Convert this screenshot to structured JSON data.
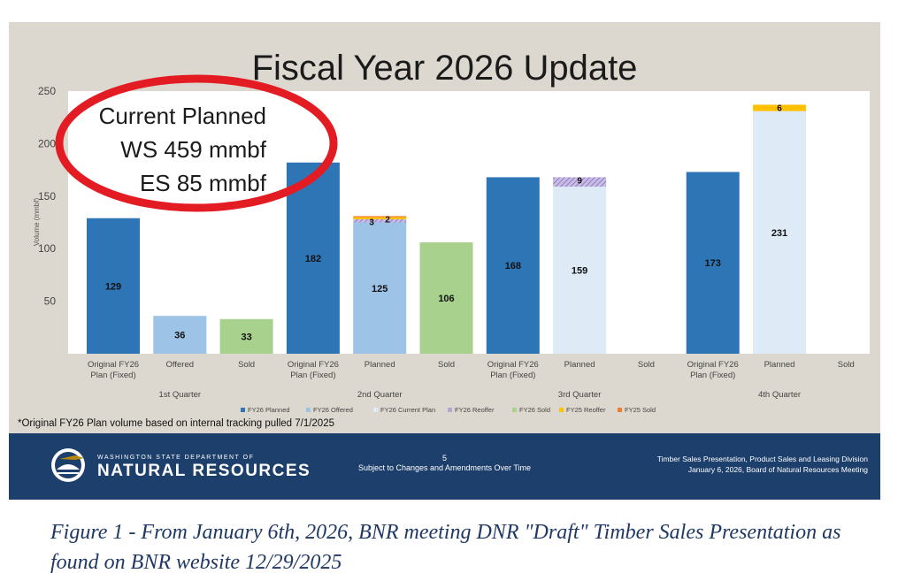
{
  "slide": {
    "title": "Fiscal Year 2026 Update",
    "footnote": "*Original FY26 Plan volume based on internal tracking pulled 7/1/2025"
  },
  "annotation": {
    "lines": [
      "Current Planned",
      "WS 459 mmbf",
      "ES 85 mmbf"
    ],
    "circle_color": "#e31b23"
  },
  "chart_data": {
    "type": "bar",
    "stacked": true,
    "ylabel": "Volume (mmbf)",
    "ylim": [
      0,
      250
    ],
    "yticks": [
      50,
      100,
      150,
      200,
      250
    ],
    "grid": false,
    "legend_position": "bottom",
    "groups": [
      {
        "label": "1st Quarter",
        "bars": [
          {
            "label": [
              "Original FY26",
              "Plan (Fixed)"
            ],
            "segments": [
              {
                "series": "FY26 Planned",
                "value": 129,
                "label": "129"
              }
            ]
          },
          {
            "label": [
              "Offered"
            ],
            "segments": [
              {
                "series": "FY26 Offered",
                "value": 36,
                "label": "36"
              }
            ]
          },
          {
            "label": [
              "Sold"
            ],
            "segments": [
              {
                "series": "FY26 Sold",
                "value": 33,
                "label": "33"
              }
            ]
          }
        ]
      },
      {
        "label": "2nd Quarter",
        "bars": [
          {
            "label": [
              "Original FY26",
              "Plan (Fixed)"
            ],
            "segments": [
              {
                "series": "FY26 Planned",
                "value": 182,
                "label": "182"
              }
            ]
          },
          {
            "label": [
              "Planned"
            ],
            "segments": [
              {
                "series": "FY26 Offered",
                "value": 125,
                "label": "125"
              },
              {
                "series": "FY26 Reoffer",
                "value": 3,
                "label": "3"
              },
              {
                "series": "FY25 Reoffer",
                "value": 2,
                "label": "2"
              },
              {
                "series": "FY25 Sold",
                "value": 1,
                "label": ""
              }
            ]
          },
          {
            "label": [
              "Sold"
            ],
            "segments": [
              {
                "series": "FY26 Sold",
                "value": 106,
                "label": "106"
              }
            ]
          }
        ]
      },
      {
        "label": "3rd Quarter",
        "bars": [
          {
            "label": [
              "Original FY26",
              "Plan (Fixed)"
            ],
            "segments": [
              {
                "series": "FY26 Planned",
                "value": 168,
                "label": "168"
              }
            ]
          },
          {
            "label": [
              "Planned"
            ],
            "segments": [
              {
                "series": "FY26 Current Plan",
                "value": 159,
                "label": "159"
              },
              {
                "series": "FY26 Reoffer",
                "value": 9,
                "label": "9"
              }
            ]
          },
          {
            "label": [
              "Sold"
            ],
            "segments": []
          }
        ]
      },
      {
        "label": "4th Quarter",
        "bars": [
          {
            "label": [
              "Original FY26",
              "Plan (Fixed)"
            ],
            "segments": [
              {
                "series": "FY26 Planned",
                "value": 173,
                "label": "173"
              }
            ]
          },
          {
            "label": [
              "Planned"
            ],
            "segments": [
              {
                "series": "FY26 Current Plan",
                "value": 231,
                "label": "231"
              },
              {
                "series": "FY25 Reoffer",
                "value": 6,
                "label": "6"
              }
            ]
          },
          {
            "label": [
              "Sold"
            ],
            "segments": []
          }
        ]
      }
    ],
    "series": [
      {
        "name": "FY26 Planned",
        "color": "#2e75b6"
      },
      {
        "name": "FY26 Offered",
        "color": "#9dc3e6"
      },
      {
        "name": "FY26 Current Plan",
        "color": "#deebf7"
      },
      {
        "name": "FY26 Reoffer",
        "color": "#b4a7d6"
      },
      {
        "name": "FY26 Sold",
        "color": "#a9d18e"
      },
      {
        "name": "FY25 Reoffer",
        "color": "#ffc000"
      },
      {
        "name": "FY25 Sold",
        "color": "#ed7d31"
      }
    ]
  },
  "footer": {
    "agency_small": "WASHINGTON STATE DEPARTMENT OF",
    "agency_big": "NATURAL RESOURCES",
    "page_number": "5",
    "center_text": "Subject to Changes and Amendments Over Time",
    "right_line1": "Timber Sales Presentation, Product Sales and Leasing Division",
    "right_line2": "January 6, 2026, Board of Natural Resources Meeting"
  },
  "caption": "Figure 1 - From January 6th, 2026, BNR meeting DNR \"Draft\" Timber Sales Presentation as found on BNR website 12/29/2025"
}
